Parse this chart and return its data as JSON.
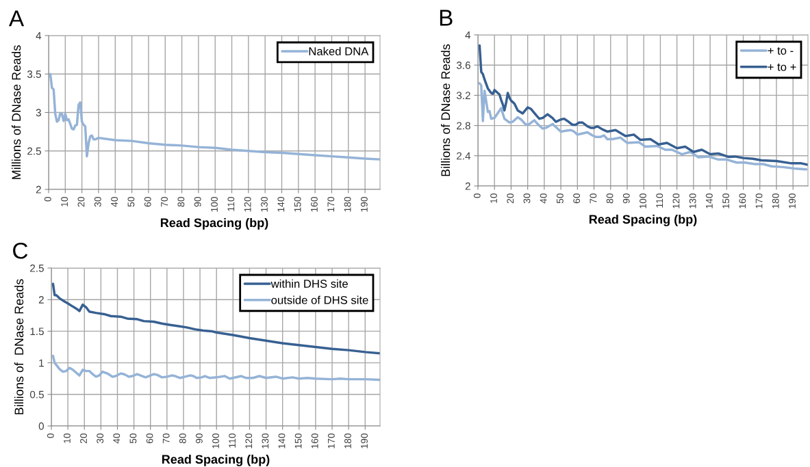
{
  "chart_data": [
    {
      "type": "line",
      "title": "A",
      "xlabel": "Read Spacing (bp)",
      "ylabel": "Millions of DNase Reads",
      "xlim": [
        0,
        199
      ],
      "xticks": [
        0,
        10,
        20,
        30,
        40,
        50,
        60,
        70,
        80,
        90,
        100,
        110,
        120,
        130,
        140,
        150,
        160,
        170,
        180,
        190
      ],
      "ylim": [
        2,
        4
      ],
      "yticks": [
        2,
        2.5,
        3,
        3.5,
        4
      ],
      "grid": true,
      "legend": "top right",
      "series": [
        {
          "name": "Naked DNA",
          "color": "#95b3d7",
          "x": [
            1,
            2,
            3,
            4,
            5,
            6,
            7,
            8,
            9,
            10,
            11,
            12,
            13,
            14,
            15,
            16,
            17,
            18,
            19,
            20,
            21,
            22,
            23,
            24,
            25,
            26,
            27,
            28,
            30,
            40,
            50,
            60,
            70,
            80,
            90,
            100,
            110,
            120,
            130,
            140,
            150,
            160,
            170,
            180,
            190,
            199
          ],
          "values": [
            3.5,
            3.32,
            3.3,
            2.98,
            2.88,
            2.9,
            2.99,
            2.98,
            2.89,
            2.98,
            2.9,
            2.91,
            2.85,
            2.79,
            2.78,
            2.83,
            2.84,
            3.1,
            3.13,
            2.88,
            2.84,
            2.82,
            2.43,
            2.6,
            2.69,
            2.7,
            2.65,
            2.65,
            2.67,
            2.64,
            2.63,
            2.6,
            2.58,
            2.57,
            2.55,
            2.54,
            2.515,
            2.5,
            2.485,
            2.475,
            2.46,
            2.445,
            2.43,
            2.415,
            2.4,
            2.39
          ]
        }
      ]
    },
    {
      "type": "line",
      "title": "B",
      "xlabel": "Read Spacing (bp)",
      "ylabel": "Billions of DNase Reads",
      "xlim": [
        0,
        199
      ],
      "xticks": [
        0,
        10,
        20,
        30,
        40,
        50,
        60,
        70,
        80,
        90,
        100,
        110,
        120,
        130,
        140,
        150,
        160,
        170,
        180,
        190
      ],
      "ylim": [
        2,
        4
      ],
      "yticks": [
        2,
        2.4,
        2.8,
        3.2,
        3.6,
        4
      ],
      "grid": true,
      "legend": "top right",
      "series": [
        {
          "name": "+ to -",
          "color": "#95b3d7",
          "x": [
            1,
            2,
            3,
            4,
            5,
            6,
            7,
            8,
            10,
            14,
            16,
            19,
            21,
            24,
            26,
            29,
            31,
            34,
            36,
            39,
            41,
            45,
            47,
            50,
            53,
            56,
            58,
            60,
            62,
            66,
            69,
            71,
            74,
            76,
            78,
            81,
            86,
            90,
            97,
            101,
            108,
            113,
            117,
            123,
            128,
            133,
            139,
            145,
            150,
            156,
            161,
            167,
            172,
            177,
            184,
            191,
            198
          ],
          "values": [
            3.36,
            3.33,
            2.86,
            3.26,
            3.12,
            2.98,
            2.99,
            2.89,
            2.9,
            3.03,
            2.89,
            2.84,
            2.85,
            2.91,
            2.88,
            2.81,
            2.82,
            2.87,
            2.82,
            2.76,
            2.77,
            2.82,
            2.78,
            2.72,
            2.73,
            2.74,
            2.72,
            2.68,
            2.69,
            2.71,
            2.67,
            2.65,
            2.65,
            2.67,
            2.62,
            2.62,
            2.64,
            2.57,
            2.58,
            2.52,
            2.53,
            2.48,
            2.48,
            2.42,
            2.45,
            2.38,
            2.39,
            2.35,
            2.35,
            2.31,
            2.31,
            2.29,
            2.29,
            2.26,
            2.25,
            2.23,
            2.22
          ]
        },
        {
          "name": "+ to +",
          "color": "#376092",
          "x": [
            1,
            2,
            3,
            4,
            5,
            6,
            8,
            9,
            10,
            11,
            12,
            13,
            14,
            15,
            16,
            17,
            18,
            19,
            20,
            22,
            24,
            27,
            30,
            32,
            35,
            37,
            39,
            42,
            45,
            47,
            50,
            52,
            54,
            57,
            59,
            61,
            63,
            66,
            68,
            70,
            72,
            75,
            78,
            83,
            89,
            94,
            98,
            104,
            109,
            114,
            120,
            125,
            130,
            135,
            140,
            145,
            151,
            155,
            160,
            166,
            171,
            180,
            189,
            195,
            199
          ],
          "values": [
            3.86,
            3.51,
            3.48,
            3.41,
            3.35,
            3.29,
            3.23,
            3.22,
            3.27,
            3.25,
            3.23,
            3.21,
            3.14,
            3.08,
            3.0,
            3.1,
            3.23,
            3.17,
            3.13,
            3.09,
            3.0,
            2.96,
            3.04,
            3.02,
            2.94,
            2.89,
            2.9,
            2.95,
            2.9,
            2.85,
            2.88,
            2.89,
            2.86,
            2.81,
            2.81,
            2.84,
            2.84,
            2.79,
            2.77,
            2.77,
            2.79,
            2.75,
            2.72,
            2.74,
            2.66,
            2.68,
            2.61,
            2.62,
            2.55,
            2.57,
            2.5,
            2.52,
            2.45,
            2.48,
            2.42,
            2.43,
            2.385,
            2.39,
            2.37,
            2.36,
            2.34,
            2.33,
            2.3,
            2.3,
            2.28
          ]
        }
      ]
    },
    {
      "type": "line",
      "title": "C",
      "xlabel": "Read Spacing (bp)",
      "ylabel": "Billions of  DNase Reads",
      "xlim": [
        0,
        199
      ],
      "xticks": [
        0,
        10,
        20,
        30,
        40,
        50,
        60,
        70,
        80,
        90,
        100,
        110,
        120,
        130,
        140,
        150,
        160,
        170,
        180,
        190
      ],
      "ylim": [
        0,
        2.5
      ],
      "yticks": [
        0,
        0.5,
        1,
        1.5,
        2,
        2.5
      ],
      "grid": true,
      "legend": "top right",
      "series": [
        {
          "name": "within DHS site",
          "color": "#376092",
          "x": [
            1,
            2,
            3,
            5,
            8,
            10,
            13,
            15,
            17,
            19,
            21,
            23,
            27,
            32,
            36,
            42,
            46,
            52,
            56,
            62,
            67,
            72,
            77,
            82,
            87,
            92,
            97,
            100,
            110,
            120,
            130,
            140,
            150,
            160,
            170,
            180,
            190,
            199
          ],
          "values": [
            2.25,
            2.07,
            2.07,
            2.02,
            1.97,
            1.94,
            1.89,
            1.86,
            1.82,
            1.92,
            1.88,
            1.81,
            1.79,
            1.77,
            1.74,
            1.73,
            1.7,
            1.69,
            1.66,
            1.65,
            1.62,
            1.6,
            1.58,
            1.56,
            1.53,
            1.51,
            1.5,
            1.48,
            1.44,
            1.39,
            1.35,
            1.31,
            1.28,
            1.25,
            1.22,
            1.2,
            1.17,
            1.15
          ]
        },
        {
          "name": "outside of DHS site",
          "color": "#95b3d7",
          "x": [
            1,
            2,
            5,
            7,
            9,
            11,
            13,
            17,
            19,
            21,
            23,
            25,
            27,
            29,
            31,
            34,
            37,
            39,
            42,
            44,
            47,
            49,
            52,
            54,
            57,
            59,
            62,
            64,
            67,
            70,
            73,
            75,
            78,
            81,
            84,
            86,
            88,
            91,
            93,
            96,
            100,
            105,
            108,
            115,
            118,
            122,
            126,
            130,
            136,
            140,
            146,
            150,
            155,
            160,
            170,
            175,
            180,
            190,
            199
          ],
          "values": [
            1.11,
            1.0,
            0.9,
            0.86,
            0.87,
            0.92,
            0.89,
            0.8,
            0.89,
            0.87,
            0.87,
            0.82,
            0.78,
            0.8,
            0.86,
            0.83,
            0.78,
            0.79,
            0.83,
            0.82,
            0.78,
            0.79,
            0.82,
            0.8,
            0.77,
            0.79,
            0.82,
            0.81,
            0.77,
            0.78,
            0.8,
            0.79,
            0.76,
            0.78,
            0.8,
            0.79,
            0.76,
            0.77,
            0.79,
            0.76,
            0.77,
            0.79,
            0.75,
            0.79,
            0.76,
            0.76,
            0.79,
            0.76,
            0.78,
            0.75,
            0.77,
            0.75,
            0.76,
            0.75,
            0.74,
            0.75,
            0.74,
            0.74,
            0.73
          ]
        }
      ]
    }
  ]
}
